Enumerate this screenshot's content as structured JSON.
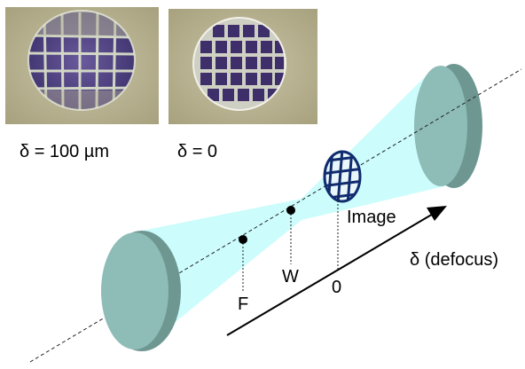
{
  "photos": [
    {
      "caption": "δ = 100 µm"
    },
    {
      "caption": "δ = 0"
    }
  ],
  "diagram": {
    "points": [
      "F",
      "W",
      "0"
    ],
    "image_label": "Image",
    "axis_label": "δ (defocus)"
  },
  "colors": {
    "beam": "#ccfcfc",
    "lens_face": "#8ebcb7",
    "lens_rim": "#6e9792",
    "grid": "#102c6e",
    "photo_bg": "#b9b28f"
  }
}
